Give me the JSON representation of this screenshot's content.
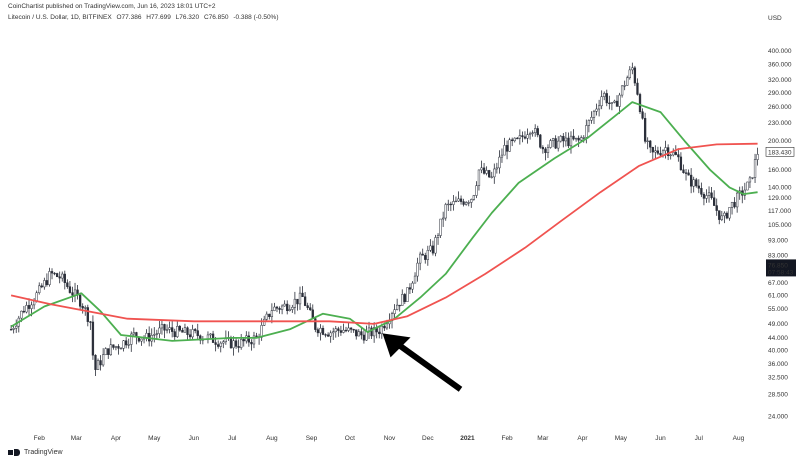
{
  "header": {
    "published": "CoinChartist published on TradingView.com, Jun 16, 2023 18:01 UTC+2"
  },
  "legend": {
    "symbol": "Litecoin / U.S. Dollar, 1D, BITFINEX",
    "open": "O77.386",
    "high": "H77.699",
    "low": "L76.320",
    "close": "C76.850",
    "change": "-0.388 (-0.50%)"
  },
  "footer": {
    "brand": "TradingView"
  },
  "colors": {
    "candle": "#2a2e39",
    "fast_ma": "#4caf50",
    "slow_ma": "#f05350",
    "arrow": "#000000",
    "last_price_bg": "#131722",
    "last_price_text": "#ffffff"
  },
  "chart_data": {
    "type": "line",
    "title": "Litecoin / U.S. Dollar, 1D, BITFINEX",
    "y_scale": "log",
    "ylabel": "USD",
    "ylim": [
      22,
      470
    ],
    "x_ticks": [
      "Feb",
      "Mar",
      "Apr",
      "May",
      "Jun",
      "Jul",
      "Aug",
      "Sep",
      "Oct",
      "Nov",
      "Dec",
      "2021",
      "Feb",
      "Mar",
      "Apr",
      "May",
      "Jun",
      "Jul",
      "Aug"
    ],
    "y_ticks": [
      "400.000",
      "360.000",
      "320.000",
      "290.000",
      "260.000",
      "230.000",
      "200.000",
      "183.430",
      "160.000",
      "140.000",
      "129.000",
      "117.000",
      "105.000",
      "93.000",
      "83.000",
      "76.850",
      "67.000",
      "61.000",
      "55.000",
      "49.000",
      "44.000",
      "40.000",
      "36.000",
      "32.500",
      "28.500",
      "24.000"
    ],
    "current_price": {
      "value": "76.850",
      "countdown": "07:58:43"
    },
    "series": [
      {
        "role": "price",
        "x": [
          "2020-01-10",
          "2020-01-20",
          "2020-01-31",
          "2020-02-10",
          "2020-02-18",
          "2020-02-26",
          "2020-03-05",
          "2020-03-12",
          "2020-03-15",
          "2020-03-25",
          "2020-04-05",
          "2020-04-15",
          "2020-04-25",
          "2020-05-08",
          "2020-05-20",
          "2020-06-05",
          "2020-06-20",
          "2020-07-05",
          "2020-07-20",
          "2020-08-01",
          "2020-08-10",
          "2020-08-25",
          "2020-09-04",
          "2020-09-15",
          "2020-09-25",
          "2020-10-10",
          "2020-10-20",
          "2020-10-25",
          "2020-11-05",
          "2020-11-15",
          "2020-11-24",
          "2020-12-05",
          "2020-12-15",
          "2020-12-25",
          "2021-01-05",
          "2021-01-10",
          "2021-01-20",
          "2021-01-30",
          "2021-02-10",
          "2021-02-20",
          "2021-03-01",
          "2021-03-15",
          "2021-03-30",
          "2021-04-10",
          "2021-04-17",
          "2021-04-25",
          "2021-05-05",
          "2021-05-10",
          "2021-05-15",
          "2021-05-20",
          "2021-05-25",
          "2021-06-05",
          "2021-06-15",
          "2021-06-22",
          "2021-07-01",
          "2021-07-10",
          "2021-07-20",
          "2021-07-25",
          "2021-08-01",
          "2021-08-10",
          "2021-08-16"
        ],
        "y": [
          47,
          55,
          62,
          72,
          70,
          63,
          58,
          50,
          34,
          40,
          42,
          45,
          44,
          47,
          46,
          45,
          43,
          42,
          44,
          55,
          56,
          60,
          48,
          46,
          47,
          45,
          46,
          47,
          56,
          62,
          80,
          87,
          120,
          125,
          130,
          160,
          150,
          190,
          200,
          225,
          190,
          200,
          200,
          250,
          290,
          255,
          320,
          350,
          280,
          200,
          180,
          190,
          175,
          150,
          140,
          128,
          108,
          120,
          130,
          145,
          183
        ]
      },
      {
        "role": "fast_ma",
        "x": [
          "2020-01-10",
          "2020-02-05",
          "2020-03-05",
          "2020-03-20",
          "2020-04-05",
          "2020-05-15",
          "2020-07-01",
          "2020-07-20",
          "2020-08-15",
          "2020-09-10",
          "2020-10-01",
          "2020-10-15",
          "2020-11-05",
          "2020-11-25",
          "2020-12-15",
          "2021-01-05",
          "2021-01-20",
          "2021-02-10",
          "2021-03-10",
          "2021-04-05",
          "2021-04-25",
          "2021-05-10",
          "2021-06-01",
          "2021-06-20",
          "2021-07-10",
          "2021-07-25",
          "2021-08-05",
          "2021-08-16"
        ],
        "y": [
          48,
          56,
          62,
          54,
          45,
          43,
          44,
          44,
          47,
          53,
          51,
          46,
          51,
          60,
          72,
          95,
          115,
          145,
          175,
          205,
          240,
          270,
          250,
          200,
          160,
          140,
          133,
          135
        ]
      },
      {
        "role": "slow_ma",
        "x": [
          "2020-01-10",
          "2020-02-10",
          "2020-03-10",
          "2020-04-10",
          "2020-06-01",
          "2020-08-01",
          "2020-09-15",
          "2020-10-20",
          "2020-11-15",
          "2020-12-15",
          "2021-01-15",
          "2021-02-15",
          "2021-03-15",
          "2021-04-15",
          "2021-05-15",
          "2021-06-15",
          "2021-07-15",
          "2021-08-16"
        ],
        "y": [
          61,
          57,
          54,
          51,
          50,
          50,
          50,
          49,
          52,
          60,
          72,
          88,
          108,
          135,
          165,
          188,
          195,
          196
        ]
      }
    ],
    "annotation": {
      "type": "arrow",
      "at": "2020-10-25",
      "points_to": "fast_ma / slow_ma crossover"
    }
  }
}
